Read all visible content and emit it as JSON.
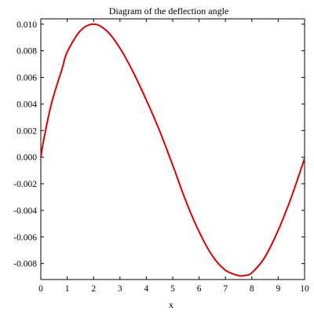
{
  "chart_data": {
    "type": "line",
    "title": "Diagram of the deflection angle",
    "xlabel": "x",
    "ylabel": "",
    "xlim": [
      0,
      10
    ],
    "ylim": [
      -0.0092,
      0.0104
    ],
    "grid": false,
    "legend": "none",
    "x_ticks": [
      0,
      1,
      2,
      3,
      4,
      5,
      6,
      7,
      8,
      9,
      10
    ],
    "x_tick_labels": [
      "0",
      "1",
      "2",
      "3",
      "4",
      "5",
      "6",
      "7",
      "8",
      "9",
      "10"
    ],
    "y_ticks": [
      -0.008,
      -0.006,
      -0.004,
      -0.002,
      0,
      0.002,
      0.004,
      0.006,
      0.008,
      0.01
    ],
    "y_tick_labels": [
      "-0.008",
      "-0.006",
      "-0.004",
      "-0.002",
      "0.000",
      "0.002",
      "0.004",
      "0.006",
      "0.008",
      "0.010"
    ],
    "series": [
      {
        "color": "#dd0000",
        "x": [
          0,
          0.1,
          0.4,
          0.8,
          1.0,
          1.5,
          2.0,
          2.5,
          3.0,
          3.5,
          4.0,
          4.5,
          5.0,
          5.5,
          6.0,
          6.5,
          7.0,
          7.5,
          7.7,
          8.0,
          8.5,
          9.0,
          9.5,
          10.0
        ],
        "y": [
          0,
          0.0012,
          0.004,
          0.0066,
          0.0079,
          0.0095,
          0.01,
          0.0095,
          0.0082,
          0.0064,
          0.0043,
          0.002,
          -0.0006,
          -0.0033,
          -0.0056,
          -0.0074,
          -0.0085,
          -0.0089,
          -0.0089,
          -0.0087,
          -0.0075,
          -0.0055,
          -0.003,
          -0.0001
        ]
      }
    ]
  }
}
